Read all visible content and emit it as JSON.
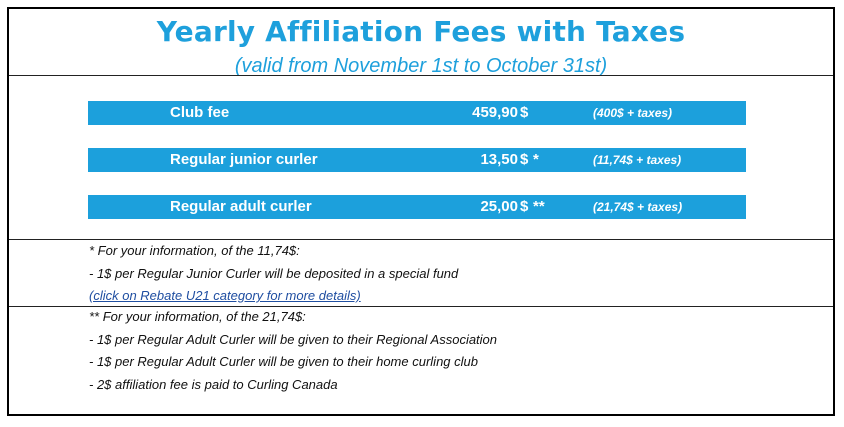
{
  "header": {
    "title": "Yearly Affiliation Fees with Taxes",
    "subtitle": "(valid from November 1st to October 31st)"
  },
  "fees": [
    {
      "name": "Club fee",
      "amount": "459,90",
      "currency": "$",
      "mark": "",
      "detail": "(400$ + taxes)"
    },
    {
      "name": "Regular junior curler",
      "amount": "13,50",
      "currency": "$",
      "mark": "*",
      "detail": "(11,74$ + taxes)"
    },
    {
      "name": "Regular adult curler",
      "amount": "25,00",
      "currency": "$",
      "mark": "**",
      "detail": "(21,74$ + taxes)"
    }
  ],
  "junior_note": {
    "heading": "* For your information, of the 11,74$:",
    "line1": "- 1$ per Regular Junior Curler will be deposited in a special fund",
    "link": "(click on Rebate U21 category for more details)"
  },
  "adult_note": {
    "heading": "** For your information, of the 21,74$:",
    "lines": [
      "- 1$ per Regular Adult Curler will be given to their Regional Association",
      "- 1$ per Regular Adult Curler will be given to their home curling club",
      "- 2$ affiliation fee is paid to Curling Canada"
    ]
  },
  "colors": {
    "accent": "#1ca0dc",
    "link": "#1f4ea1"
  }
}
